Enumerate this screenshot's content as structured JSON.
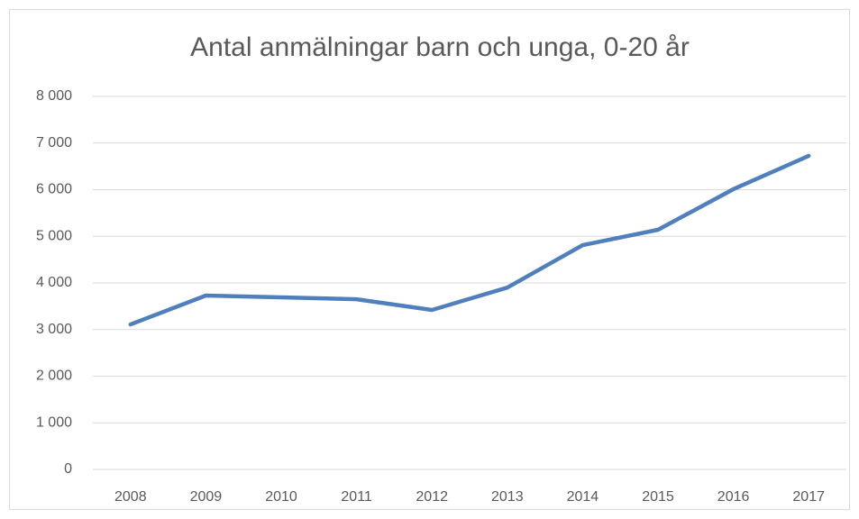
{
  "chart_data": {
    "type": "line",
    "title": "Antal anmälningar barn och unga, 0-20 år",
    "categories": [
      "2008",
      "2009",
      "2010",
      "2011",
      "2012",
      "2013",
      "2014",
      "2015",
      "2016",
      "2017"
    ],
    "series": [
      {
        "name": "Antal anmälningar",
        "color": "#4f7fbd",
        "values": [
          3110,
          3730,
          3690,
          3650,
          3420,
          3900,
          4810,
          5140,
          6010,
          6725
        ]
      }
    ],
    "ylim": [
      0,
      8000
    ],
    "yticks": [
      0,
      {
        "value": 1000,
        "label": "1 000"
      },
      {
        "value": 2000,
        "label": "2 000"
      },
      {
        "value": 3000,
        "label": "3 000"
      },
      {
        "value": 4000,
        "label": "4 000"
      },
      {
        "value": 5000,
        "label": "5 000"
      },
      {
        "value": 6000,
        "label": "6 000"
      },
      {
        "value": 7000,
        "label": "7 000"
      },
      {
        "value": 8000,
        "label": "8 000"
      }
    ],
    "grid": true
  }
}
